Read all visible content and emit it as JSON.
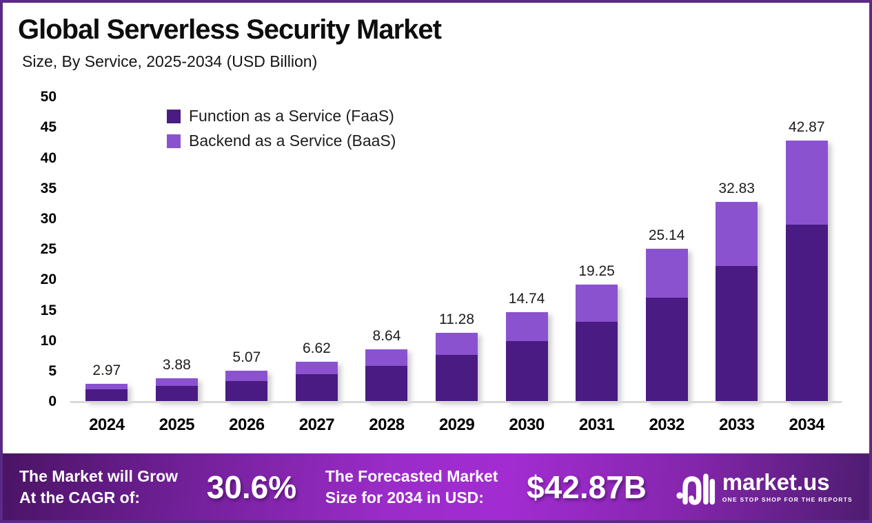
{
  "header": {
    "title": "Global Serverless Security Market",
    "subtitle": "Size, By Service, 2025-2034 (USD Billion)"
  },
  "chart_data": {
    "type": "bar",
    "stacked": true,
    "title": "Global Serverless Security Market",
    "subtitle": "Size, By Service, 2025-2034 (USD Billion)",
    "unit": "USD Billion",
    "categories": [
      "2024",
      "2025",
      "2026",
      "2027",
      "2028",
      "2029",
      "2030",
      "2031",
      "2032",
      "2033",
      "2034"
    ],
    "series": [
      {
        "name": "Function as a Service (FaaS)",
        "color": "#4a1b82",
        "values": [
          2.02,
          2.64,
          3.45,
          4.5,
          5.88,
          7.67,
          10.02,
          13.09,
          17.1,
          22.32,
          29.15
        ]
      },
      {
        "name": "Backend as a Service (BaaS)",
        "color": "#8b52d0",
        "values": [
          0.95,
          1.24,
          1.62,
          2.12,
          2.76,
          3.61,
          4.72,
          6.16,
          8.04,
          10.51,
          13.72
        ]
      }
    ],
    "totals": [
      2.97,
      3.88,
      5.07,
      6.62,
      8.64,
      11.28,
      14.74,
      19.25,
      25.14,
      32.83,
      42.87
    ],
    "total_labels": [
      "2.97",
      "3.88",
      "5.07",
      "6.62",
      "8.64",
      "11.28",
      "14.74",
      "19.25",
      "25.14",
      "32.83",
      "42.87"
    ],
    "ylim": [
      0,
      50
    ],
    "yticks": [
      0,
      5,
      10,
      15,
      20,
      25,
      30,
      35,
      40,
      45,
      50
    ],
    "grid": false,
    "legend_position": "top-left-inside",
    "baseline_color": "#d9d9d9"
  },
  "footer": {
    "growth_label_line1": "The Market will Grow",
    "growth_label_line2": "At the CAGR of:",
    "cagr_value": "30.6%",
    "forecast_label_line1": "The Forecasted Market",
    "forecast_label_line2": "Size for 2034 in USD:",
    "forecast_value": "$42.87B",
    "brand_name": "market.us",
    "brand_tagline": "ONE STOP SHOP FOR THE REPORTS"
  },
  "colors": {
    "frame_border": "#5b2a86",
    "faas_bar": "#4a1b82",
    "baas_bar": "#8b52d0",
    "banner_gradient_left": "#4a1465",
    "banner_gradient_center": "#a22cd2",
    "banner_gradient_right": "#4e1c70",
    "text_dark": "#0d0d0d",
    "text_white": "#ffffff"
  }
}
